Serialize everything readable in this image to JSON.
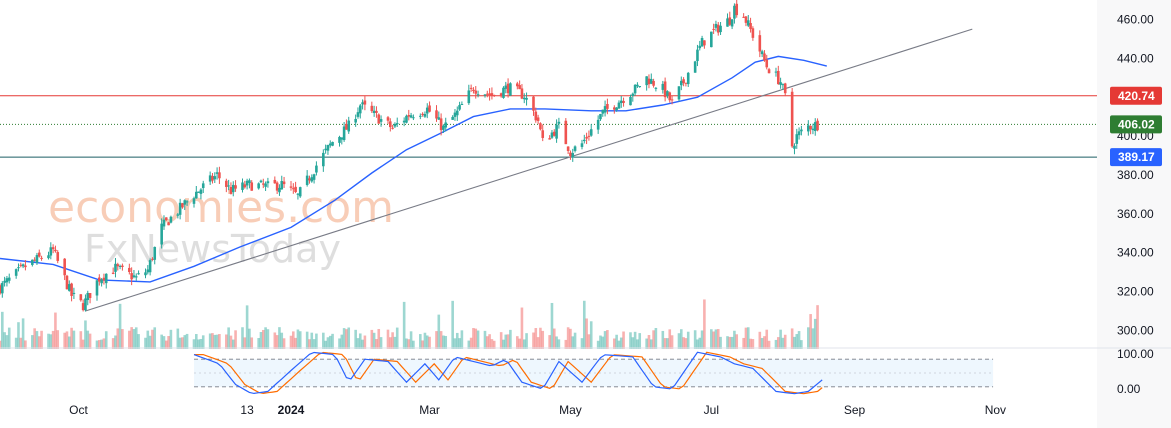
{
  "watermark": {
    "line1": "economies.com",
    "line2": "FxNewsToday"
  },
  "colors": {
    "up": "#26a69a",
    "down": "#ef5350",
    "ma": "#2962ff",
    "trendline": "#787b86",
    "resistance": "#e53935",
    "support": "#1b5e63",
    "current": "#2e7d32",
    "stoch_k": "#2962ff",
    "stoch_d": "#ff6d00",
    "support_badge": "#2962ff"
  },
  "chart_data": {
    "type": "candlestick",
    "y_axis": {
      "range": [
        292,
        470
      ],
      "ticks": [
        300,
        320,
        340,
        360,
        380,
        400,
        420,
        440,
        460
      ],
      "tick_labels": [
        "300.00",
        "320.00",
        "340.00",
        "360.00",
        "380.00",
        "400.00",
        "420.00",
        "440.00",
        "460.00"
      ]
    },
    "x_axis": {
      "labels": [
        "Oct",
        "13",
        "2024",
        "Mar",
        "May",
        "Jul",
        "Sep",
        "Nov"
      ],
      "label_dates": [
        "2023-10-01",
        "2023-12-13",
        "2024-01-01",
        "2024-03-01",
        "2024-05-01",
        "2024-07-01",
        "2024-09-01",
        "2024-11-01"
      ],
      "range": [
        "2023-08-28",
        "2024-12-15"
      ]
    },
    "price_levels": [
      {
        "name": "resistance",
        "value": 420.74,
        "label": "420.74"
      },
      {
        "name": "current",
        "value": 406.02,
        "label": "406.02"
      },
      {
        "name": "support",
        "value": 389.17,
        "label": "389.17"
      }
    ],
    "trendline": {
      "start": [
        "2023-10-04",
        310
      ],
      "end": [
        "2024-10-22",
        455
      ]
    },
    "close_path": [
      [
        "2023-08-28",
        322
      ],
      [
        "2023-09-08",
        333
      ],
      [
        "2023-09-20",
        341
      ],
      [
        "2023-09-28",
        318
      ],
      [
        "2023-10-03",
        313
      ],
      [
        "2023-10-10",
        327
      ],
      [
        "2023-10-17",
        332
      ],
      [
        "2023-10-26",
        327
      ],
      [
        "2023-10-31",
        331
      ],
      [
        "2023-11-06",
        353
      ],
      [
        "2023-11-20",
        370
      ],
      [
        "2023-11-30",
        380
      ],
      [
        "2023-12-06",
        372
      ],
      [
        "2023-12-14",
        375
      ],
      [
        "2023-12-22",
        374
      ],
      [
        "2023-12-28",
        375
      ],
      [
        "2024-01-04",
        369
      ],
      [
        "2024-01-12",
        385
      ],
      [
        "2024-01-19",
        397
      ],
      [
        "2024-01-26",
        405
      ],
      [
        "2024-01-31",
        416
      ],
      [
        "2024-02-07",
        410
      ],
      [
        "2024-02-14",
        404
      ],
      [
        "2024-02-21",
        411
      ],
      [
        "2024-02-29",
        414
      ],
      [
        "2024-03-07",
        404
      ],
      [
        "2024-03-13",
        412
      ],
      [
        "2024-03-20",
        425
      ],
      [
        "2024-03-28",
        421
      ],
      [
        "2024-04-04",
        425
      ],
      [
        "2024-04-11",
        421
      ],
      [
        "2024-04-17",
        408
      ],
      [
        "2024-04-19",
        397
      ],
      [
        "2024-04-26",
        405
      ],
      [
        "2024-05-01",
        392
      ],
      [
        "2024-05-06",
        396
      ],
      [
        "2024-05-15",
        412
      ],
      [
        "2024-05-22",
        418
      ],
      [
        "2024-05-29",
        424
      ],
      [
        "2024-06-03",
        430
      ],
      [
        "2024-06-10",
        424
      ],
      [
        "2024-06-14",
        417
      ],
      [
        "2024-06-20",
        430
      ],
      [
        "2024-06-27",
        448
      ],
      [
        "2024-07-03",
        455
      ],
      [
        "2024-07-09",
        460
      ],
      [
        "2024-07-11",
        466
      ],
      [
        "2024-07-15",
        462
      ],
      [
        "2024-07-19",
        452
      ],
      [
        "2024-07-25",
        436
      ],
      [
        "2024-07-31",
        428
      ],
      [
        "2024-08-02",
        420
      ],
      [
        "2024-08-05",
        395
      ],
      [
        "2024-08-07",
        400
      ],
      [
        "2024-08-12",
        405
      ],
      [
        "2024-08-16",
        406
      ]
    ],
    "moving_average": [
      [
        "2023-08-28",
        337
      ],
      [
        "2023-09-20",
        334
      ],
      [
        "2023-10-10",
        326
      ],
      [
        "2023-11-01",
        325
      ],
      [
        "2023-11-20",
        333
      ],
      [
        "2023-12-10",
        343
      ],
      [
        "2024-01-01",
        353
      ],
      [
        "2024-01-20",
        367
      ],
      [
        "2024-02-05",
        381
      ],
      [
        "2024-02-20",
        393
      ],
      [
        "2024-03-05",
        401
      ],
      [
        "2024-03-20",
        410
      ],
      [
        "2024-04-05",
        414
      ],
      [
        "2024-04-20",
        414
      ],
      [
        "2024-05-10",
        413
      ],
      [
        "2024-05-25",
        413
      ],
      [
        "2024-06-10",
        416
      ],
      [
        "2024-06-25",
        420
      ],
      [
        "2024-07-10",
        430
      ],
      [
        "2024-07-20",
        438
      ],
      [
        "2024-07-30",
        441
      ],
      [
        "2024-08-10",
        439
      ],
      [
        "2024-08-20",
        436
      ]
    ],
    "stochastic": {
      "range": [
        0,
        100
      ],
      "tick_labels": [
        "100.00",
        "0.00"
      ],
      "band": [
        20,
        80
      ],
      "window": [
        "2023-11-20",
        "2024-10-31"
      ],
      "k_path": [
        [
          "2023-11-20",
          90
        ],
        [
          "2023-12-01",
          70
        ],
        [
          "2023-12-08",
          25
        ],
        [
          "2023-12-15",
          5
        ],
        [
          "2023-12-22",
          10
        ],
        [
          "2024-01-02",
          60
        ],
        [
          "2024-01-10",
          95
        ],
        [
          "2024-01-20",
          90
        ],
        [
          "2024-01-26",
          30
        ],
        [
          "2024-02-02",
          80
        ],
        [
          "2024-02-12",
          75
        ],
        [
          "2024-02-20",
          30
        ],
        [
          "2024-02-28",
          70
        ],
        [
          "2024-03-05",
          35
        ],
        [
          "2024-03-12",
          85
        ],
        [
          "2024-03-20",
          75
        ],
        [
          "2024-03-28",
          65
        ],
        [
          "2024-04-03",
          80
        ],
        [
          "2024-04-10",
          30
        ],
        [
          "2024-04-19",
          15
        ],
        [
          "2024-04-26",
          75
        ],
        [
          "2024-05-06",
          30
        ],
        [
          "2024-05-15",
          90
        ],
        [
          "2024-05-28",
          85
        ],
        [
          "2024-06-06",
          20
        ],
        [
          "2024-06-14",
          15
        ],
        [
          "2024-06-25",
          95
        ],
        [
          "2024-07-05",
          85
        ],
        [
          "2024-07-11",
          70
        ],
        [
          "2024-07-19",
          60
        ],
        [
          "2024-07-29",
          10
        ],
        [
          "2024-08-06",
          5
        ],
        [
          "2024-08-12",
          10
        ],
        [
          "2024-08-18",
          35
        ]
      ]
    }
  }
}
